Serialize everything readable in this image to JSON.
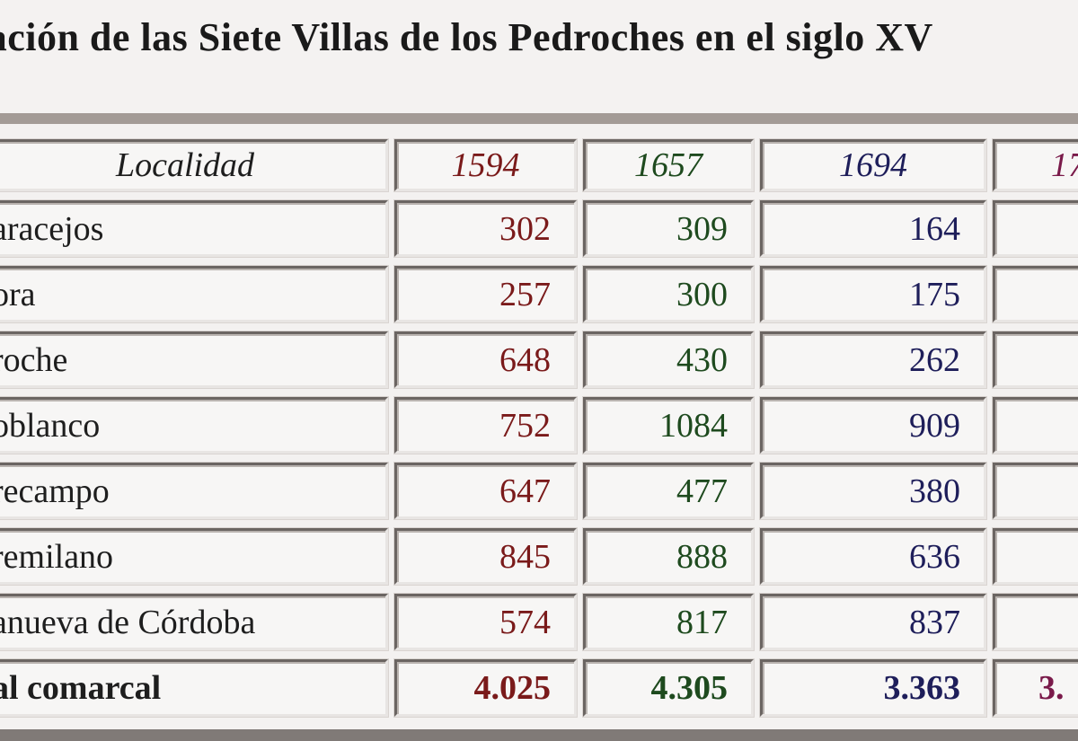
{
  "title": "blación de las Siete Villas de los Pedroches en el siglo XV",
  "table": {
    "headers": {
      "localidad": "Localidad",
      "y1594": "1594",
      "y1657": "1657",
      "y1694": "1694",
      "y17xx": "17"
    },
    "rows": [
      {
        "localidad": "aracejos",
        "y1594": "302",
        "y1657": "309",
        "y1694": "164",
        "y17xx": ""
      },
      {
        "localidad": "ora",
        "y1594": "257",
        "y1657": "300",
        "y1694": "175",
        "y17xx": ""
      },
      {
        "localidad": "roche",
        "y1594": "648",
        "y1657": "430",
        "y1694": "262",
        "y17xx": ""
      },
      {
        "localidad": "oblanco",
        "y1594": "752",
        "y1657": "1084",
        "y1694": "909",
        "y17xx": ""
      },
      {
        "localidad": "recampo",
        "y1594": "647",
        "y1657": "477",
        "y1694": "380",
        "y17xx": ""
      },
      {
        "localidad": "remilano",
        "y1594": "845",
        "y1657": "888",
        "y1694": "636",
        "y17xx": ""
      },
      {
        "localidad": "anueva de Córdoba",
        "y1594": "574",
        "y1657": "817",
        "y1694": "837",
        "y17xx": ""
      }
    ],
    "total": {
      "localidad": "al comarcal",
      "y1594": "4.025",
      "y1657": "4.305",
      "y1694": "3.363",
      "y17xx": "3."
    }
  },
  "colors": {
    "col_1594": "#7a1a1a",
    "col_1657": "#1e4a1e",
    "col_1694": "#1e1e5a",
    "col_17xx": "#7a1a4a",
    "frame_bar": "#a39b96"
  }
}
